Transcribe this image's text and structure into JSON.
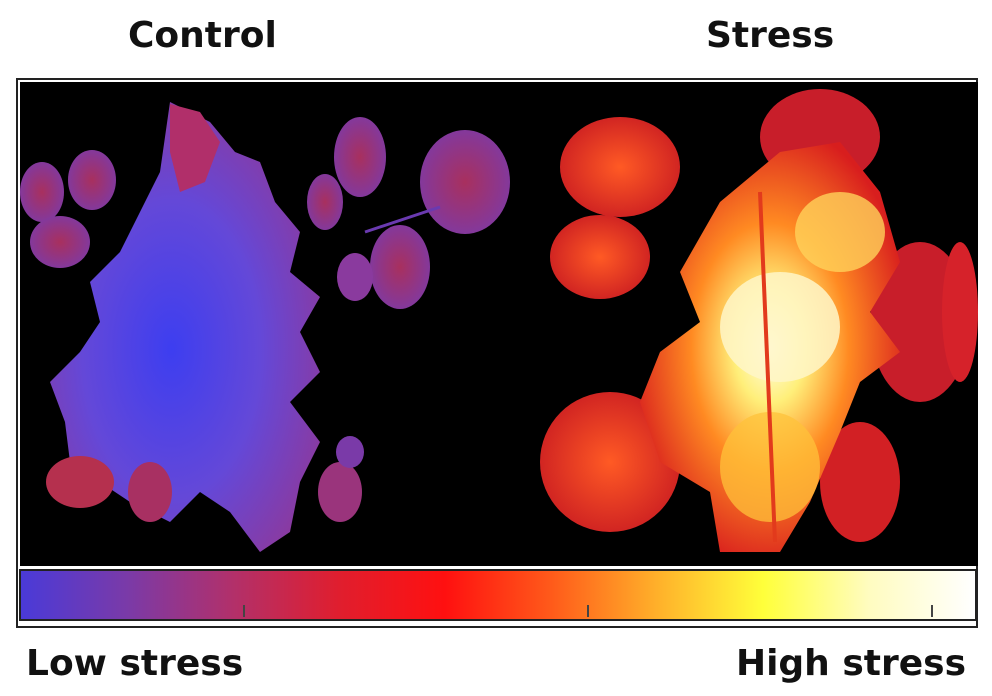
{
  "panels": {
    "left_title": "Control",
    "right_title": "Stress"
  },
  "colorbar": {
    "low_label": "Low stress",
    "high_label": "High stress",
    "gradient_colors": [
      "#4a3ad8",
      "#7a3aa8",
      "#b2306a",
      "#e01e2e",
      "#ff1010",
      "#ff5a1a",
      "#ffb02a",
      "#ffff3a",
      "#fffcc0",
      "#ffffff"
    ]
  },
  "image": {
    "background": "#000000",
    "control_colors": [
      "#5b45e8",
      "#8a3a9e",
      "#c42d52"
    ],
    "stress_colors": [
      "#d62020",
      "#ff6a1c",
      "#ffd94a",
      "#fffde0"
    ]
  }
}
